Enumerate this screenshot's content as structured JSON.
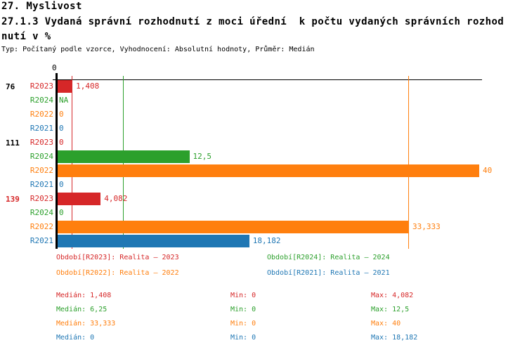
{
  "header": {
    "line1": "27. Myslivost",
    "line2": "27.1.3 Vydaná správní rozhodnutí z moci úřední  k počtu vydaných správních rozhod",
    "line3": "nutí v %",
    "meta": "Typ: Počítaný podle vzorce, Vyhodnocení: Absolutní hodnoty, Průměr: Medián"
  },
  "colors": {
    "r2023_red": "#d62728",
    "r2024_green": "#2ca02c",
    "r2022_orange": "#ff7f0e",
    "r2021_blue": "#1f77b4",
    "axis_black": "#000000"
  },
  "chart_data": {
    "type": "bar",
    "orientation": "horizontal",
    "title": "27.1.3 Vydaná správní rozhodnutí z moci úřední k počtu vydaných správních rozhodnutí v %",
    "xlabel": "",
    "ylabel": "",
    "xlim": [
      0,
      40.5
    ],
    "axis": {
      "origin_tick": "0"
    },
    "grid": "median lines per series",
    "legend_position": "bottom",
    "groups": [
      {
        "label": "76",
        "label_color": "#000000",
        "rows": [
          {
            "series": "R2023",
            "color": "#d62728",
            "value": 1.408,
            "display": "1,408"
          },
          {
            "series": "R2024",
            "color": "#2ca02c",
            "value": null,
            "display": "NA"
          },
          {
            "series": "R2022",
            "color": "#ff7f0e",
            "value": 0,
            "display": "0"
          },
          {
            "series": "R2021",
            "color": "#1f77b4",
            "value": 0,
            "display": "0"
          }
        ]
      },
      {
        "label": "111",
        "label_color": "#000000",
        "rows": [
          {
            "series": "R2023",
            "color": "#d62728",
            "value": 0,
            "display": "0"
          },
          {
            "series": "R2024",
            "color": "#2ca02c",
            "value": 12.5,
            "display": "12,5"
          },
          {
            "series": "R2022",
            "color": "#ff7f0e",
            "value": 40,
            "display": "40"
          },
          {
            "series": "R2021",
            "color": "#1f77b4",
            "value": 0,
            "display": "0"
          }
        ]
      },
      {
        "label": "139",
        "label_color": "#d62728",
        "rows": [
          {
            "series": "R2023",
            "color": "#d62728",
            "value": 4.082,
            "display": "4,082"
          },
          {
            "series": "R2024",
            "color": "#2ca02c",
            "value": 0,
            "display": "0"
          },
          {
            "series": "R2022",
            "color": "#ff7f0e",
            "value": 33.333,
            "display": "33,333"
          },
          {
            "series": "R2021",
            "color": "#1f77b4",
            "value": 18.182,
            "display": "18,182"
          }
        ]
      }
    ],
    "median_lines": [
      {
        "series": "R2023",
        "color": "#d62728",
        "value": 1.408
      },
      {
        "series": "R2024",
        "color": "#2ca02c",
        "value": 6.25
      },
      {
        "series": "R2022",
        "color": "#ff7f0e",
        "value": 33.333
      },
      {
        "series": "R2021",
        "color": "#1f77b4",
        "value": 0
      }
    ],
    "legend": [
      {
        "series": "R2023",
        "color": "#d62728",
        "label": "Období[R2023]: Realita – 2023"
      },
      {
        "series": "R2024",
        "color": "#2ca02c",
        "label": "Období[R2024]: Realita – 2024"
      },
      {
        "series": "R2022",
        "color": "#ff7f0e",
        "label": "Období[R2022]: Realita – 2022"
      },
      {
        "series": "R2021",
        "color": "#1f77b4",
        "label": "Období[R2021]: Realita – 2021"
      }
    ],
    "stats": [
      {
        "series": "R2023",
        "color": "#d62728",
        "median": "Medián: 1,408",
        "min": "Min: 0",
        "max": "Max: 4,082"
      },
      {
        "series": "R2024",
        "color": "#2ca02c",
        "median": "Medián: 6,25",
        "min": "Min: 0",
        "max": "Max: 12,5"
      },
      {
        "series": "R2022",
        "color": "#ff7f0e",
        "median": "Medián: 33,333",
        "min": "Min: 0",
        "max": "Max: 40"
      },
      {
        "series": "R2021",
        "color": "#1f77b4",
        "median": "Medián: 0",
        "min": "Min: 0",
        "max": "Max: 18,182"
      }
    ]
  }
}
